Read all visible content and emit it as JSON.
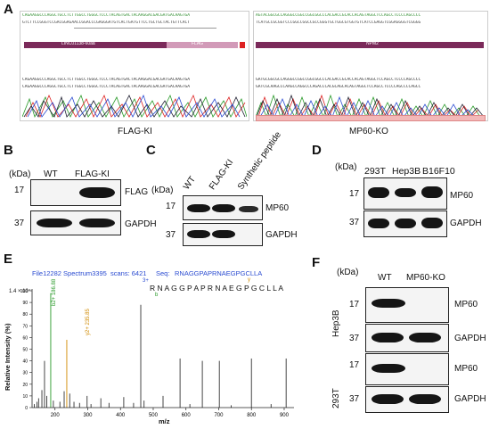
{
  "panels": {
    "A": {
      "label": "A",
      "left_caption": "FLAG-KI",
      "right_caption": "MP60-KO",
      "left_seq1": "CAGAAGGCCCAGGCTGCCTCTTGGCCTGGGCTCCCTACAGTGACTACAAGGACGACGATGACAAGTGA",
      "left_seq2": "GTCTTCCGGGTCCGACGGAGAACCGGACCCGAGGGATGTCACTGATGTTCCTGCTGCTACTGTTCACT",
      "left_seq3": "CAGAAGGCCCAGGCTGCCTCTTGGCCTGGGCTCCCTACAGTGACTACAAGGACGACGATGACAAGTGA",
      "left_seq4": "CAGAAGGCCCAGGCTGCCTCTTGGCCTGGGCTCCCTACAGTGACTACAAGGACGACGATGACAAGTGA",
      "left_bar1": "LINC01138-60aa",
      "left_bar2": "FLAG",
      "right_seq1": "AGTACGGCGCCAGGGCCGGCCGGCGGCCCACGACCGCACCACAGTAGGCTCCAGCCTCCCCAGCCCC",
      "right_seq2": "TCATGCCGCGGTCCCGGCCGGCCGCCGGGTGCTGGCGTGGTGTCATCCGAGGTCGGAGGGGTCGGGG",
      "right_seq3": "GATGCGGCGCCAGGGCCGGCCGGCGGCCCACGACCGCACCACAGTAGGCTCCAGCCTCCCCAGCCCC",
      "right_seq4": "GATCGCAAGCCCAAGCCAGGCCCAGACCCACGCAGCACAGTAGGCTCCAGCCTCCCCAGCCCCAGCC",
      "right_bar1": "NPM2"
    },
    "B": {
      "label": "B",
      "kda": "(kDa)",
      "lanes": [
        "WT",
        "FLAG-KI"
      ],
      "rows": [
        {
          "mw": "17",
          "protein": "FLAG"
        },
        {
          "mw": "37",
          "protein": "GAPDH"
        }
      ]
    },
    "C": {
      "label": "C",
      "kda": "(kDa)",
      "lanes": [
        "WT",
        "FLAG-KI",
        "Synthetic peptide"
      ],
      "rows": [
        {
          "mw": "17",
          "protein": "MP60"
        },
        {
          "mw": "37",
          "protein": "GAPDH"
        }
      ]
    },
    "D": {
      "label": "D",
      "kda": "(kDa)",
      "lanes": [
        "293T",
        "Hep3B",
        "B16F10"
      ],
      "rows": [
        {
          "mw": "17",
          "protein": "MP60"
        },
        {
          "mw": "37",
          "protein": "GAPDH"
        }
      ]
    },
    "E": {
      "label": "E",
      "header_file": "File12282 Spectrum3395",
      "header_scans": "scans: 6421",
      "header_seq_label": "Seq:",
      "header_seq": "RNAGGPAPRNAEGPGCLLA",
      "ylabel": "Relative Intensity (%)",
      "xlabel": "m/z",
      "y_top": "1.4 × 10⁴",
      "peptide": "R N A G G P A P R N A E G P G C L L A",
      "ion_label_1": "b2+ 186.88",
      "ion_label_2": "y2+ 235.85",
      "frag_3plus": "3+",
      "frag_b": "b",
      "frag_y": "y"
    },
    "F": {
      "label": "F",
      "kda": "(kDa)",
      "lanes": [
        "WT",
        "MP60-KO"
      ],
      "groups": [
        {
          "cell": "Hep3B",
          "rows": [
            {
              "mw": "17",
              "protein": "MP60"
            },
            {
              "mw": "37",
              "protein": "GAPDH"
            }
          ]
        },
        {
          "cell": "293T",
          "rows": [
            {
              "mw": "17",
              "protein": "MP60"
            },
            {
              "mw": "37",
              "protein": "GAPDH"
            }
          ]
        }
      ]
    }
  },
  "chart_data": {
    "type": "bar",
    "title": "File12282 Spectrum3395 scans: 6421 Seq: RNAGGPAPRNAEGPGCLLA",
    "xlabel": "m/z",
    "ylabel": "Relative Intensity (%)",
    "xlim": [
      130,
      930
    ],
    "ylim": [
      0,
      100
    ],
    "x_ticks": [
      200,
      300,
      400,
      500,
      600,
      700,
      800,
      900
    ],
    "y_ticks": [
      0,
      10,
      20,
      30,
      40,
      50,
      60,
      70,
      80,
      90,
      100
    ],
    "peaks": [
      {
        "x": 137,
        "y": 3
      },
      {
        "x": 145,
        "y": 5
      },
      {
        "x": 150,
        "y": 8
      },
      {
        "x": 160,
        "y": 15
      },
      {
        "x": 168,
        "y": 40
      },
      {
        "x": 175,
        "y": 10
      },
      {
        "x": 187,
        "y": 98
      },
      {
        "x": 195,
        "y": 6
      },
      {
        "x": 215,
        "y": 5
      },
      {
        "x": 228,
        "y": 14
      },
      {
        "x": 236,
        "y": 58
      },
      {
        "x": 245,
        "y": 12
      },
      {
        "x": 258,
        "y": 5
      },
      {
        "x": 275,
        "y": 4
      },
      {
        "x": 298,
        "y": 10
      },
      {
        "x": 310,
        "y": 3
      },
      {
        "x": 340,
        "y": 8
      },
      {
        "x": 365,
        "y": 4
      },
      {
        "x": 410,
        "y": 9
      },
      {
        "x": 440,
        "y": 4
      },
      {
        "x": 462,
        "y": 88
      },
      {
        "x": 472,
        "y": 6
      },
      {
        "x": 530,
        "y": 10
      },
      {
        "x": 582,
        "y": 42
      },
      {
        "x": 612,
        "y": 3
      },
      {
        "x": 650,
        "y": 40
      },
      {
        "x": 702,
        "y": 40
      },
      {
        "x": 738,
        "y": 2
      },
      {
        "x": 800,
        "y": 42
      },
      {
        "x": 860,
        "y": 3
      },
      {
        "x": 906,
        "y": 42
      }
    ]
  }
}
